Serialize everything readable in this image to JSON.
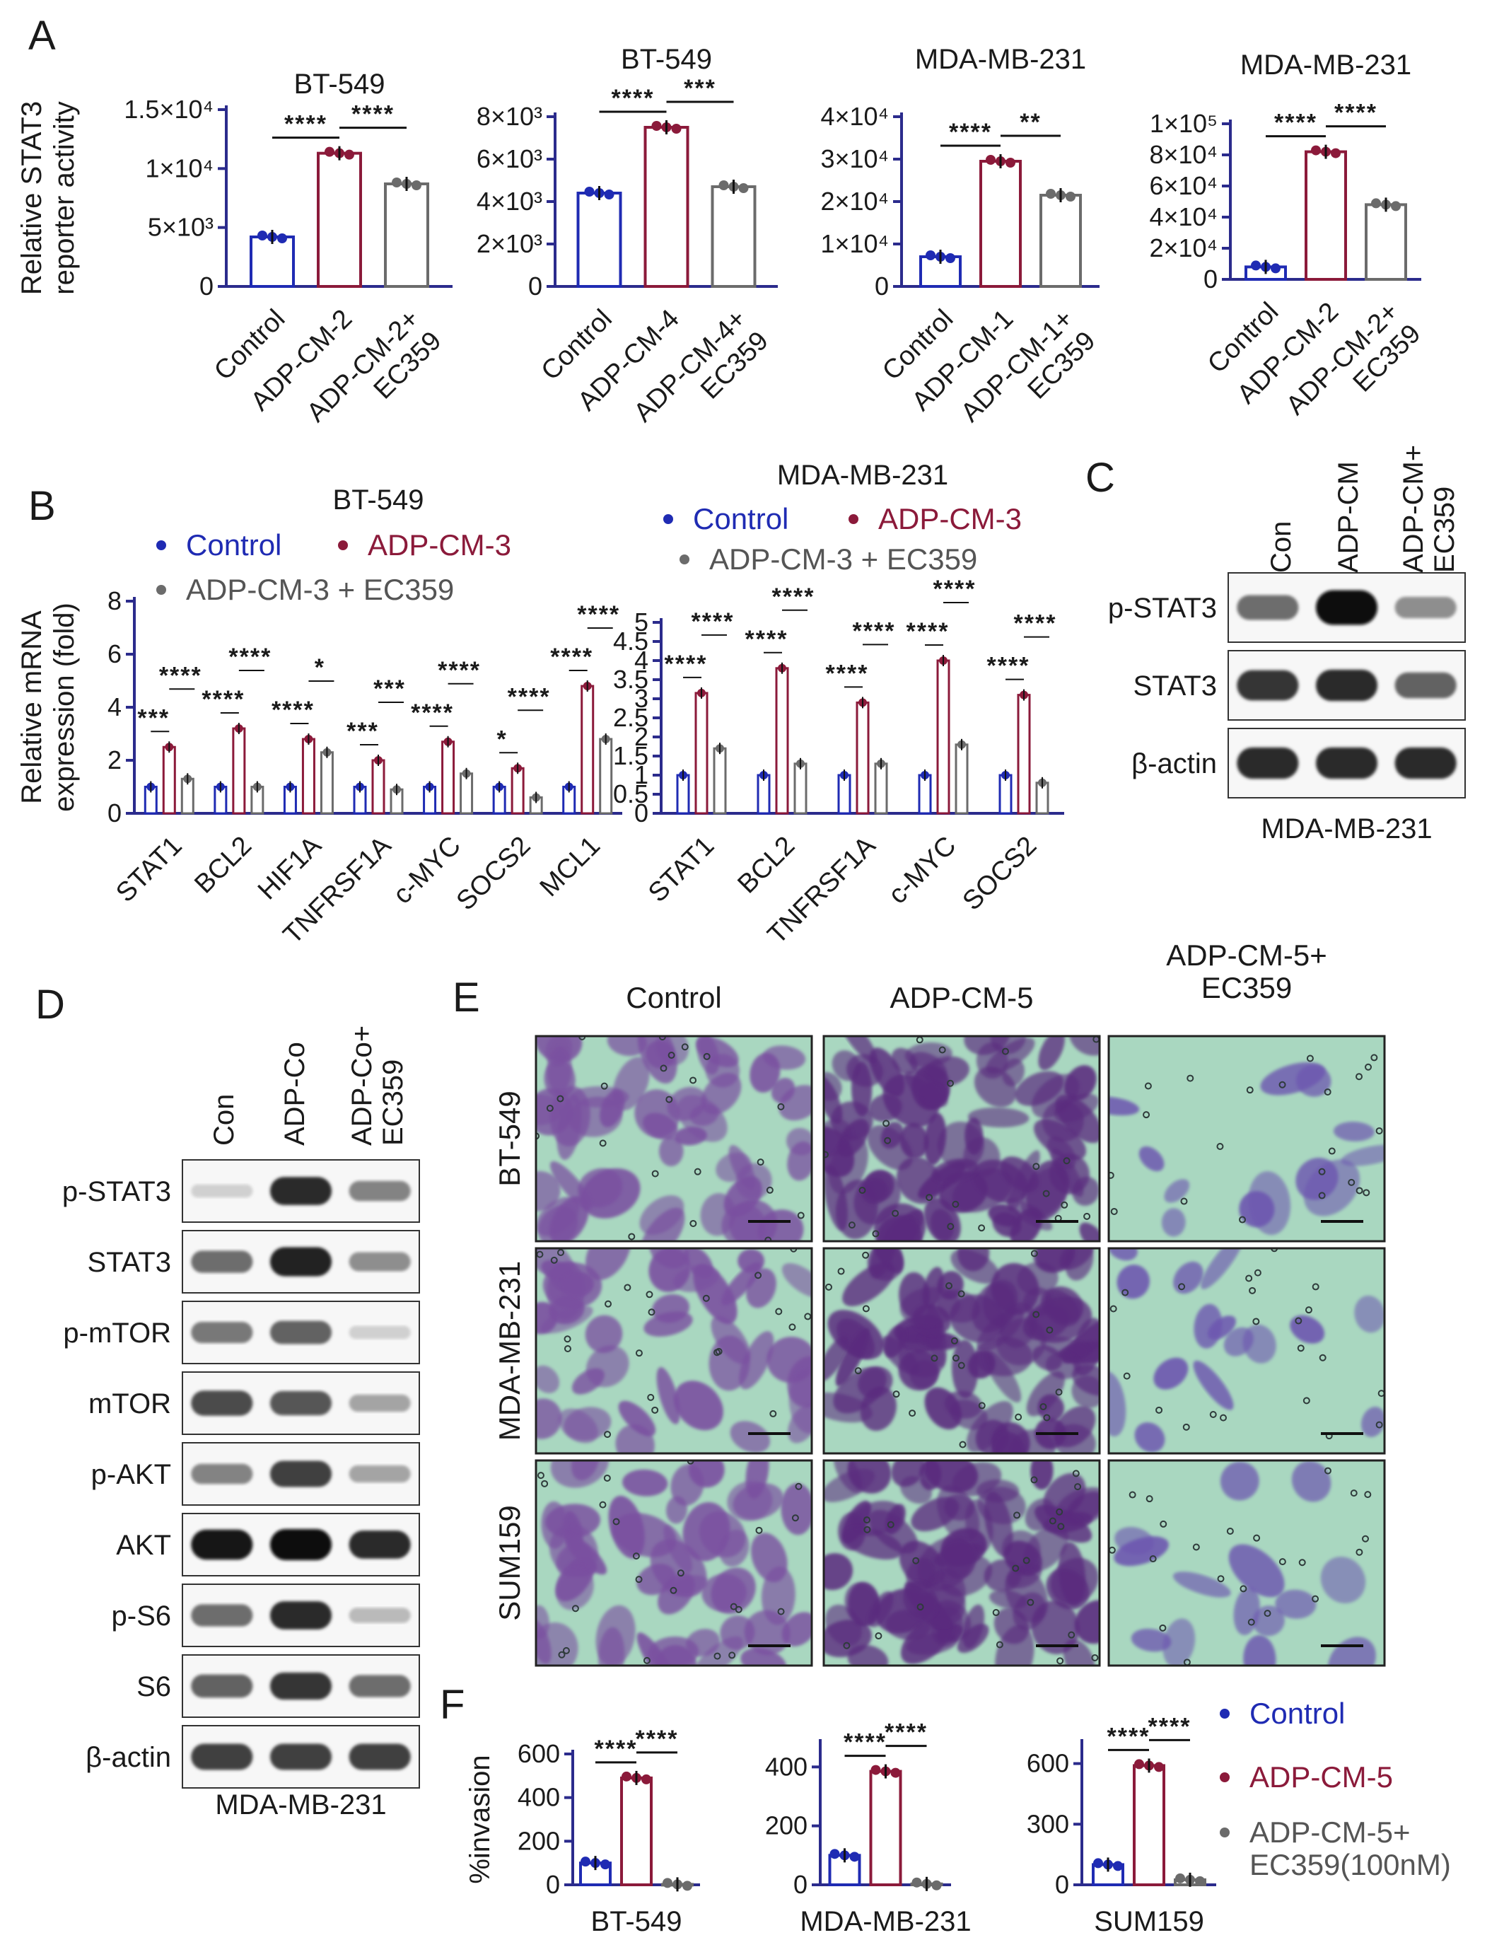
{
  "colors": {
    "control": "#1f2bb3",
    "treated": "#8b1a3a",
    "inhibitor": "#6b6b6b",
    "axis": "#2b2b8c",
    "stain": "#6a3b8f",
    "background_field": "#a9d7c0"
  },
  "panels": {
    "A": {
      "letter": "A"
    },
    "B": {
      "letter": "B"
    },
    "C": {
      "letter": "C"
    },
    "D": {
      "letter": "D"
    },
    "E": {
      "letter": "E"
    },
    "F": {
      "letter": "F"
    }
  },
  "chart_data": [
    {
      "id": "A1",
      "type": "bar",
      "title": "BT-549",
      "ylabel": "Relative STAT3\nreporter activity",
      "categories": [
        "Control",
        "ADP-CM-2",
        "ADP-CM-2+\nEC359"
      ],
      "values": [
        4200,
        11300,
        8700
      ],
      "ylim": [
        0,
        15000
      ],
      "yticks": [
        {
          "v": 0,
          "t": "0"
        },
        {
          "v": 5000,
          "t": "5×10³"
        },
        {
          "v": 10000,
          "t": "1×10⁴"
        },
        {
          "v": 15000,
          "t": "1.5×10⁴"
        }
      ],
      "significance": [
        {
          "from": 0,
          "to": 1,
          "label": "****"
        },
        {
          "from": 1,
          "to": 2,
          "label": "****"
        }
      ]
    },
    {
      "id": "A2",
      "type": "bar",
      "title": "BT-549",
      "categories": [
        "Control",
        "ADP-CM-4",
        "ADP-CM-4+\nEC359"
      ],
      "values": [
        4400,
        7500,
        4700
      ],
      "ylim": [
        0,
        8000
      ],
      "yticks": [
        {
          "v": 0,
          "t": "0"
        },
        {
          "v": 2000,
          "t": "2×10³"
        },
        {
          "v": 4000,
          "t": "4×10³"
        },
        {
          "v": 6000,
          "t": "6×10³"
        },
        {
          "v": 8000,
          "t": "8×10³"
        }
      ],
      "significance": [
        {
          "from": 0,
          "to": 1,
          "label": "****"
        },
        {
          "from": 1,
          "to": 2,
          "label": "***"
        }
      ]
    },
    {
      "id": "A3",
      "type": "bar",
      "title": "MDA-MB-231",
      "categories": [
        "Control",
        "ADP-CM-1",
        "ADP-CM-1+\nEC359"
      ],
      "values": [
        7000,
        29500,
        21500
      ],
      "ylim": [
        0,
        40000
      ],
      "yticks": [
        {
          "v": 0,
          "t": "0"
        },
        {
          "v": 10000,
          "t": "1×10⁴"
        },
        {
          "v": 20000,
          "t": "2×10⁴"
        },
        {
          "v": 30000,
          "t": "3×10⁴"
        },
        {
          "v": 40000,
          "t": "4×10⁴"
        }
      ],
      "significance": [
        {
          "from": 0,
          "to": 1,
          "label": "****"
        },
        {
          "from": 1,
          "to": 2,
          "label": "**"
        }
      ]
    },
    {
      "id": "A4",
      "type": "bar",
      "title": "MDA-MB-231",
      "categories": [
        "Control",
        "ADP-CM-2",
        "ADP-CM-2+\nEC359"
      ],
      "values": [
        8000,
        82000,
        48000
      ],
      "ylim": [
        0,
        100000
      ],
      "yticks": [
        {
          "v": 0,
          "t": "0"
        },
        {
          "v": 20000,
          "t": "2×10⁴"
        },
        {
          "v": 40000,
          "t": "4×10⁴"
        },
        {
          "v": 60000,
          "t": "6×10⁴"
        },
        {
          "v": 80000,
          "t": "8×10⁴"
        },
        {
          "v": 100000,
          "t": "1×10⁵"
        }
      ],
      "significance": [
        {
          "from": 0,
          "to": 1,
          "label": "****"
        },
        {
          "from": 1,
          "to": 2,
          "label": "****"
        }
      ]
    },
    {
      "id": "B1",
      "type": "bar",
      "title": "BT-549",
      "ylabel": "Relative mRNA\nexpression (fold)",
      "legend": [
        "Control",
        "ADP-CM-3",
        "ADP-CM-3 + EC359"
      ],
      "categories": [
        "STAT1",
        "BCL2",
        "HIF1A",
        "TNFRSF1A",
        "c-MYC",
        "SOCS2",
        "MCL1"
      ],
      "series": [
        {
          "values": [
            1,
            1,
            1,
            1,
            1,
            1,
            1
          ]
        },
        {
          "values": [
            2.5,
            3.2,
            2.8,
            2.0,
            2.7,
            1.7,
            4.8
          ]
        },
        {
          "values": [
            1.3,
            1.0,
            2.3,
            0.9,
            1.5,
            0.6,
            2.8
          ]
        }
      ],
      "ylim": [
        0,
        8
      ],
      "yticks": [
        {
          "v": 0,
          "t": "0"
        },
        {
          "v": 2,
          "t": "2"
        },
        {
          "v": 4,
          "t": "4"
        },
        {
          "v": 6,
          "t": "6"
        },
        {
          "v": 8,
          "t": "8"
        }
      ],
      "significance": [
        [
          "***",
          "****"
        ],
        [
          "****",
          "****"
        ],
        [
          "****",
          "*"
        ],
        [
          "***",
          "***"
        ],
        [
          "****",
          "****"
        ],
        [
          "*",
          "****"
        ],
        [
          "****",
          "****"
        ]
      ]
    },
    {
      "id": "B2",
      "type": "bar",
      "title": "MDA-MB-231",
      "legend": [
        "Control",
        "ADP-CM-3",
        "ADP-CM-3 + EC359"
      ],
      "categories": [
        "STAT1",
        "BCL2",
        "TNFRSF1A",
        "c-MYC",
        "SOCS2"
      ],
      "series": [
        {
          "values": [
            1,
            1,
            1,
            1,
            1
          ]
        },
        {
          "values": [
            3.15,
            3.8,
            2.9,
            4.0,
            3.1
          ]
        },
        {
          "values": [
            1.7,
            1.3,
            1.3,
            1.8,
            0.8
          ]
        }
      ],
      "ylim": [
        0,
        5
      ],
      "yticks": [
        {
          "v": 0,
          "t": "0"
        },
        {
          "v": 0.5,
          "t": "0.5"
        },
        {
          "v": 1,
          "t": "1"
        },
        {
          "v": 1.5,
          "t": "1.5"
        },
        {
          "v": 2,
          "t": "2"
        },
        {
          "v": 2.5,
          "t": "2.5"
        },
        {
          "v": 3,
          "t": "3"
        },
        {
          "v": 3.5,
          "t": "3.5"
        },
        {
          "v": 4,
          "t": "4"
        },
        {
          "v": 4.5,
          "t": "4.5"
        },
        {
          "v": 5,
          "t": "5"
        }
      ],
      "significance": [
        [
          "****",
          "****"
        ],
        [
          "****",
          "****"
        ],
        [
          "****",
          "****"
        ],
        [
          "****",
          "****"
        ],
        [
          "****",
          "****"
        ]
      ]
    },
    {
      "id": "F1",
      "type": "bar",
      "title": "BT-549",
      "ylabel": "%invasion",
      "categories": [
        "Control",
        "ADP-CM-5",
        "ADP-CM-5+ EC359(100nM)"
      ],
      "values": [
        100,
        490,
        2
      ],
      "ylim": [
        0,
        600
      ],
      "yticks": [
        {
          "v": 0,
          "t": "0"
        },
        {
          "v": 200,
          "t": "200"
        },
        {
          "v": 400,
          "t": "400"
        },
        {
          "v": 600,
          "t": "600"
        }
      ],
      "significance": [
        {
          "from": 0,
          "to": 1,
          "label": "****"
        },
        {
          "from": 1,
          "to": 2,
          "label": "****"
        }
      ]
    },
    {
      "id": "F2",
      "type": "bar",
      "title": "MDA-MB-231",
      "categories": [
        "Control",
        "ADP-CM-5",
        "ADP-CM-5+ EC359(100nM)"
      ],
      "values": [
        100,
        385,
        3
      ],
      "ylim": [
        0,
        480
      ],
      "yticks": [
        {
          "v": 0,
          "t": "0"
        },
        {
          "v": 200,
          "t": "200"
        },
        {
          "v": 400,
          "t": "400"
        }
      ],
      "significance": [
        {
          "from": 0,
          "to": 1,
          "label": "****"
        },
        {
          "from": 1,
          "to": 2,
          "label": "****"
        }
      ]
    },
    {
      "id": "F3",
      "type": "bar",
      "title": "SUM159",
      "categories": [
        "Control",
        "ADP-CM-5",
        "ADP-CM-5+ EC359(100nM)"
      ],
      "values": [
        100,
        590,
        25
      ],
      "ylim": [
        0,
        700
      ],
      "yticks": [
        {
          "v": 0,
          "t": "0"
        },
        {
          "v": 300,
          "t": "300"
        },
        {
          "v": 600,
          "t": "600"
        }
      ],
      "significance": [
        {
          "from": 0,
          "to": 1,
          "label": "****"
        },
        {
          "from": 1,
          "to": 2,
          "label": "****"
        }
      ]
    }
  ],
  "legendF": [
    "Control",
    "ADP-CM-5",
    "ADP-CM-5+\nEC359(100nM)"
  ],
  "blotC": {
    "lanes": [
      "Con",
      "ADP-CM",
      "ADP-CM+\nEC359"
    ],
    "rows": [
      {
        "label": "p-STAT3",
        "levels": [
          0.55,
          1.0,
          0.4
        ]
      },
      {
        "label": "STAT3",
        "levels": [
          0.8,
          0.85,
          0.6
        ]
      },
      {
        "label": "β-actin",
        "levels": [
          0.85,
          0.85,
          0.85
        ]
      }
    ],
    "cell_line": "MDA-MB-231"
  },
  "blotD": {
    "lanes": [
      "Con",
      "ADP-Co",
      "ADP-Co+\nEC359"
    ],
    "rows": [
      {
        "label": "p-STAT3",
        "levels": [
          0.1,
          0.85,
          0.45
        ]
      },
      {
        "label": "STAT3",
        "levels": [
          0.55,
          0.9,
          0.4
        ]
      },
      {
        "label": "p-mTOR",
        "levels": [
          0.5,
          0.6,
          0.1
        ]
      },
      {
        "label": "mTOR",
        "levels": [
          0.7,
          0.65,
          0.3
        ]
      },
      {
        "label": "p-AKT",
        "levels": [
          0.45,
          0.75,
          0.3
        ]
      },
      {
        "label": "AKT",
        "levels": [
          0.95,
          1.0,
          0.85
        ]
      },
      {
        "label": "p-S6",
        "levels": [
          0.55,
          0.85,
          0.2
        ]
      },
      {
        "label": "S6",
        "levels": [
          0.6,
          0.8,
          0.55
        ]
      },
      {
        "label": "β-actin",
        "levels": [
          0.75,
          0.75,
          0.75
        ]
      }
    ],
    "cell_line": "MDA-MB-231"
  },
  "micrographs": {
    "columns": [
      "Control",
      "ADP-CM-5",
      "ADP-CM-5+\nEC359"
    ],
    "rows": [
      "BT-549",
      "MDA-MB-231",
      "SUM159"
    ],
    "density": [
      [
        0.6,
        0.95,
        0.05
      ],
      [
        0.45,
        0.9,
        0.1
      ],
      [
        0.55,
        0.9,
        0.08
      ]
    ]
  }
}
